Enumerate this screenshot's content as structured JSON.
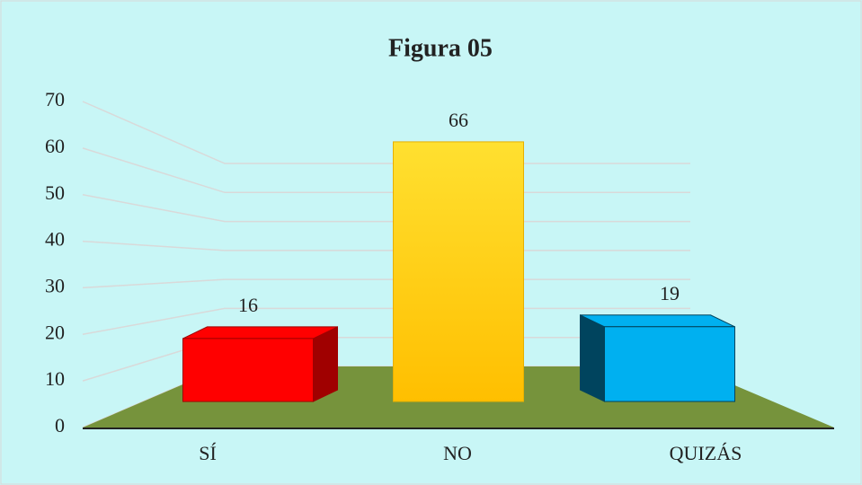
{
  "chart_data": {
    "type": "bar3d",
    "title": "Figura 05",
    "categories": [
      "SÍ",
      "NO",
      "QUIZÁS"
    ],
    "values": [
      16,
      66,
      19
    ],
    "colors": [
      "#ff0000",
      "#ffc000",
      "#00b0f0"
    ],
    "ylim": [
      0,
      70
    ],
    "yticks": [
      0,
      10,
      20,
      30,
      40,
      50,
      60,
      70
    ],
    "grid": true
  }
}
